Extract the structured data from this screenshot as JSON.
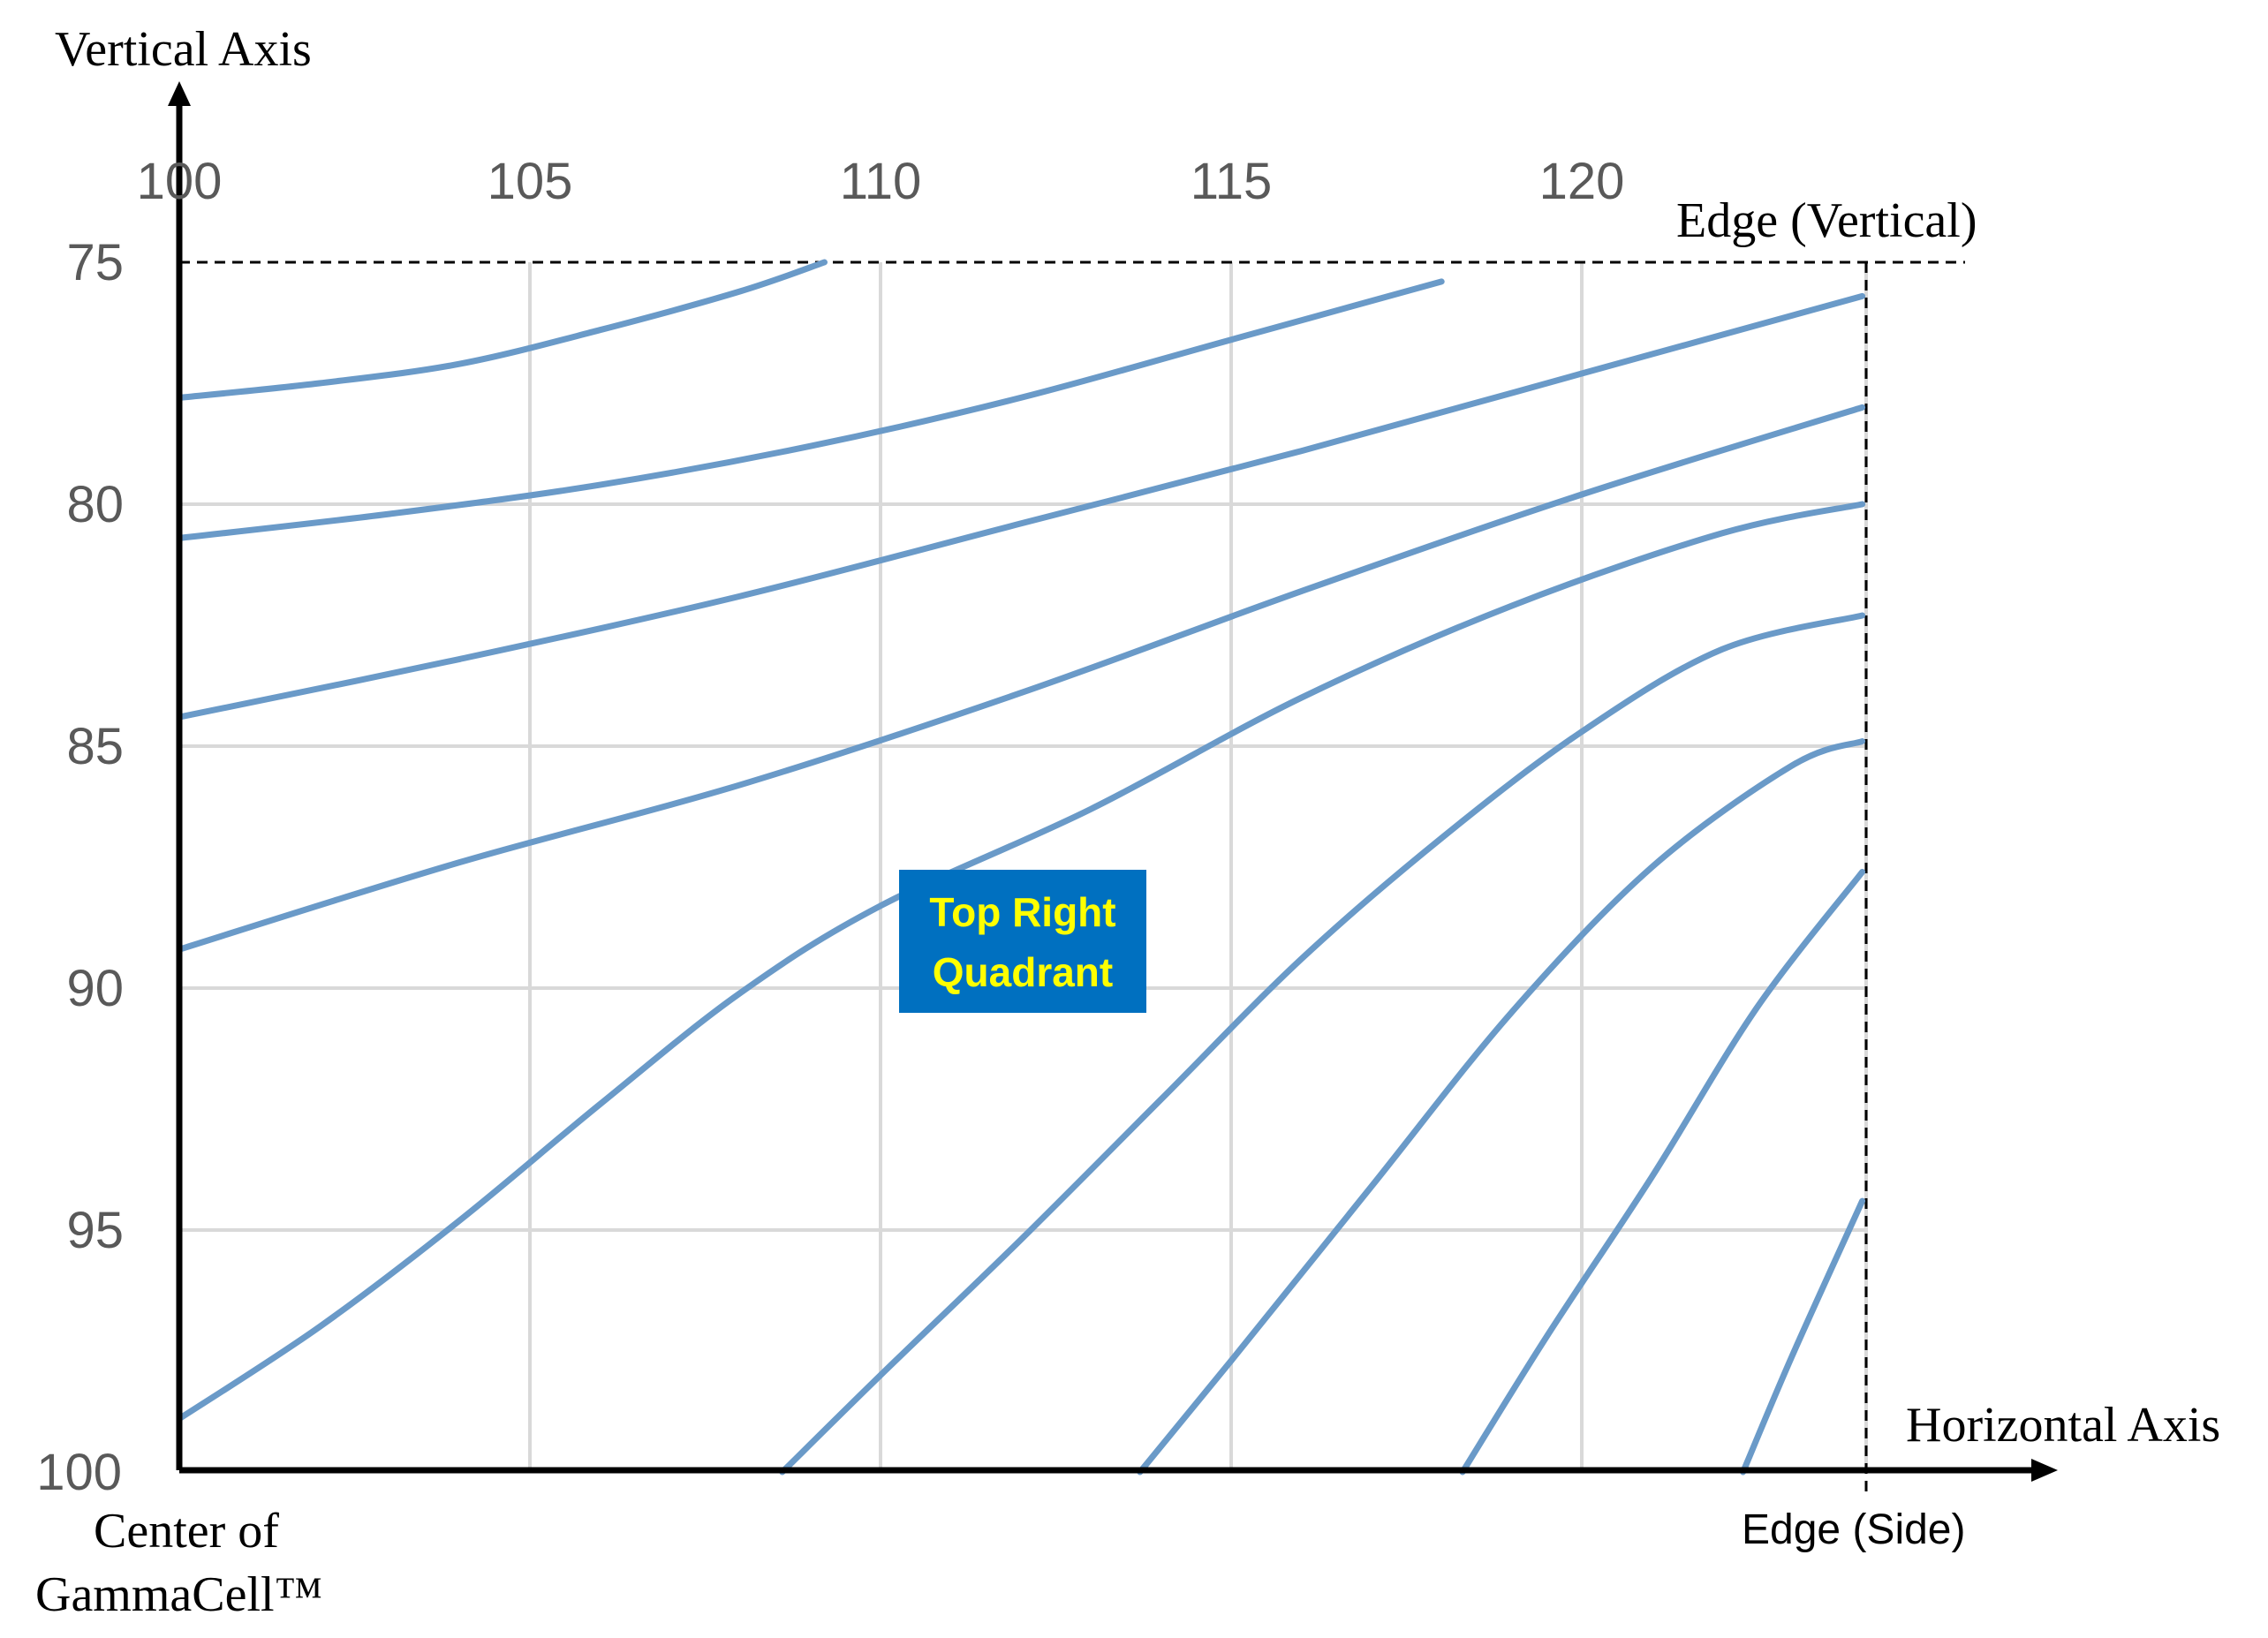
{
  "colors": {
    "contour": "#6a9ac8",
    "label_box_bg": "#0070c0",
    "label_box_text": "#ffff00"
  },
  "chart_data": {
    "type": "line",
    "title": "",
    "ylabel": "Vertical Axis",
    "xlabel": "Horizontal Axis",
    "x_ticks": [
      "100",
      "105",
      "110",
      "115",
      "120"
    ],
    "y_ticks": [
      "75",
      "80",
      "85",
      "90",
      "95",
      "100"
    ],
    "xlim": [
      100,
      124
    ],
    "ylim": [
      75,
      100
    ],
    "y_inverted": true,
    "x_axis_position": "top",
    "grid": true,
    "legend": "none",
    "annotations": {
      "edge_vertical": "Edge (Vertical)",
      "edge_side": "Edge (Side)",
      "origin_line1": "Center of",
      "origin_line2": "GammaCell™",
      "quadrant_line1": "Top Right",
      "quadrant_line2": "Quadrant"
    },
    "series": [
      {
        "points": [
          [
            100,
            77.8
          ],
          [
            102,
            77.5
          ],
          [
            104,
            77.1
          ],
          [
            106,
            76.4
          ],
          [
            108,
            75.6
          ],
          [
            109.2,
            75.0
          ]
        ]
      },
      {
        "points": [
          [
            100,
            80.7
          ],
          [
            103,
            80.2
          ],
          [
            106,
            79.6
          ],
          [
            109,
            78.8
          ],
          [
            112,
            77.8
          ],
          [
            115,
            76.6
          ],
          [
            118,
            75.4
          ]
        ]
      },
      {
        "points": [
          [
            100,
            84.4
          ],
          [
            104,
            83.2
          ],
          [
            108,
            81.9
          ],
          [
            112,
            80.4
          ],
          [
            116,
            78.9
          ],
          [
            120,
            77.3
          ],
          [
            124,
            75.7
          ]
        ]
      },
      {
        "points": [
          [
            100,
            89.2
          ],
          [
            104,
            87.4
          ],
          [
            108,
            85.8
          ],
          [
            112,
            83.9
          ],
          [
            116,
            81.8
          ],
          [
            120,
            79.8
          ],
          [
            124,
            78.0
          ]
        ]
      },
      {
        "points": [
          [
            100,
            98.9
          ],
          [
            102,
            97.0
          ],
          [
            104,
            94.8
          ],
          [
            106,
            92.4
          ],
          [
            108,
            90.1
          ],
          [
            110,
            88.3
          ],
          [
            113,
            86.3
          ],
          [
            116,
            84.0
          ],
          [
            119,
            82.1
          ],
          [
            122,
            80.6
          ],
          [
            124,
            80.0
          ]
        ]
      },
      {
        "points": [
          [
            108.6,
            100
          ],
          [
            110,
            98.0
          ],
          [
            112,
            95.2
          ],
          [
            114,
            92.3
          ],
          [
            116,
            89.4
          ],
          [
            118,
            86.9
          ],
          [
            120,
            84.7
          ],
          [
            122,
            83.0
          ],
          [
            124,
            82.3
          ]
        ]
      },
      {
        "points": [
          [
            113.7,
            100
          ],
          [
            115,
            97.7
          ],
          [
            117,
            94.1
          ],
          [
            119,
            90.5
          ],
          [
            121,
            87.5
          ],
          [
            123,
            85.4
          ],
          [
            124,
            84.9
          ]
        ]
      },
      {
        "points": [
          [
            118.3,
            100
          ],
          [
            119.5,
            97.2
          ],
          [
            121,
            93.9
          ],
          [
            122.5,
            90.4
          ],
          [
            124,
            87.6
          ]
        ]
      },
      {
        "points": [
          [
            122.3,
            100
          ],
          [
            123,
            97.6
          ],
          [
            124,
            94.4
          ]
        ]
      }
    ]
  }
}
